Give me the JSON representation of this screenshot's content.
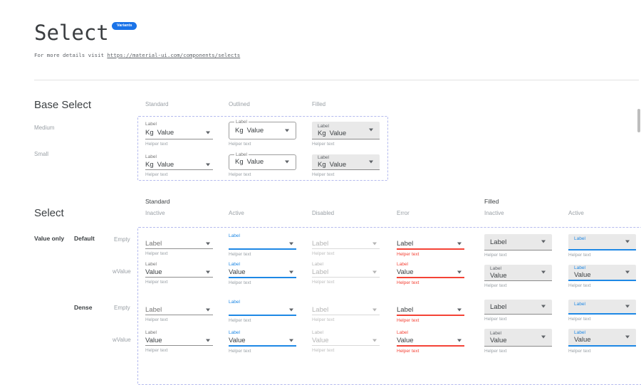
{
  "header": {
    "title": "Select",
    "badge": "Variants",
    "subtitle_prefix": "For more details visit ",
    "subtitle_link": "https://material-ui.com/components/selects"
  },
  "base_select": {
    "heading": "Base Select",
    "columns": [
      "Standard",
      "Outlined",
      "Filled"
    ],
    "sizes": [
      "Medium",
      "Small"
    ],
    "field": {
      "label": "Label",
      "adornment": "Kg",
      "value": "Value",
      "helper": "Helper text"
    }
  },
  "select_matrix": {
    "heading": "Select",
    "groups": [
      {
        "label": "Standard",
        "columns": [
          "Inactive",
          "Active",
          "Disabled",
          "Error"
        ]
      },
      {
        "label": "Filled",
        "columns": [
          "Inactive",
          "Active"
        ]
      }
    ],
    "section_label": "Value only",
    "row_groups": [
      {
        "label": "Default",
        "rows": [
          "Empty",
          "wValue"
        ]
      },
      {
        "label": "Dense",
        "rows": [
          "Empty",
          "wValue"
        ]
      }
    ],
    "rows": [
      {
        "group": "Default",
        "row": "Empty",
        "cells": [
          {
            "variant": "standard",
            "state": "inactive",
            "label": "Label",
            "value": "",
            "helper": "Helper text"
          },
          {
            "variant": "standard",
            "state": "active",
            "label": "Label",
            "value": "",
            "helper": "Helper text"
          },
          {
            "variant": "standard",
            "state": "disabled",
            "label": "Label",
            "value": "",
            "helper": "Helper text"
          },
          {
            "variant": "standard",
            "state": "error",
            "label": "Label",
            "value": "",
            "helper": "Helper text"
          },
          {
            "variant": "filled",
            "state": "inactive",
            "label": "Label",
            "value": "",
            "helper": "Helper text"
          },
          {
            "variant": "filled",
            "state": "active",
            "label": "Label",
            "value": "",
            "helper": "Helper text"
          }
        ]
      },
      {
        "group": "Default",
        "row": "wValue",
        "cells": [
          {
            "variant": "standard",
            "state": "inactive",
            "label": "Label",
            "value": "Value",
            "helper": "Helper text"
          },
          {
            "variant": "standard",
            "state": "active",
            "label": "Label",
            "value": "Value",
            "helper": "Helper text"
          },
          {
            "variant": "standard",
            "state": "disabled",
            "label": "Label",
            "value": "Label",
            "helper": "Helper text"
          },
          {
            "variant": "standard",
            "state": "error",
            "label": "Label",
            "value": "Value",
            "helper": "Helper text"
          },
          {
            "variant": "filled",
            "state": "inactive",
            "label": "Label",
            "value": "Value",
            "helper": "Helper text"
          },
          {
            "variant": "filled",
            "state": "active",
            "label": "Label",
            "value": "Value",
            "helper": "Helper text"
          }
        ]
      },
      {
        "group": "Dense",
        "row": "Empty",
        "cells": [
          {
            "variant": "standard",
            "state": "inactive",
            "label": "Label",
            "value": "",
            "helper": "Helper text"
          },
          {
            "variant": "standard",
            "state": "active",
            "label": "Label",
            "value": "",
            "helper": "Helper text"
          },
          {
            "variant": "standard",
            "state": "disabled",
            "label": "Label",
            "value": "",
            "helper": "Helper text"
          },
          {
            "variant": "standard",
            "state": "error",
            "label": "Label",
            "value": "",
            "helper": "Helper text"
          },
          {
            "variant": "filled",
            "state": "inactive",
            "label": "Label",
            "value": "",
            "helper": "Helper text"
          },
          {
            "variant": "filled",
            "state": "active",
            "label": "Label",
            "value": "",
            "helper": "Helper text"
          }
        ]
      },
      {
        "group": "Dense",
        "row": "wValue",
        "cells": [
          {
            "variant": "standard",
            "state": "inactive",
            "label": "Label",
            "value": "Value",
            "helper": "Helper text"
          },
          {
            "variant": "standard",
            "state": "active",
            "label": "Label",
            "value": "Value",
            "helper": "Helper text"
          },
          {
            "variant": "standard",
            "state": "disabled",
            "label": "Label",
            "value": "Value",
            "helper": "Helper text"
          },
          {
            "variant": "standard",
            "state": "error",
            "label": "Label",
            "value": "Value",
            "helper": "Helper text"
          },
          {
            "variant": "filled",
            "state": "inactive",
            "label": "Label",
            "value": "Value",
            "helper": "Helper text"
          },
          {
            "variant": "filled",
            "state": "active",
            "label": "Label",
            "value": "Value",
            "helper": "Helper text"
          }
        ]
      }
    ]
  },
  "colors": {
    "accent_blue": "#1e88e5",
    "error_red": "#f44336",
    "badge_blue": "#1a73e8",
    "filled_bg": "#e9e9e9",
    "dashed_frame": "#b4baee",
    "underline_gray": "#8f8f8f"
  }
}
